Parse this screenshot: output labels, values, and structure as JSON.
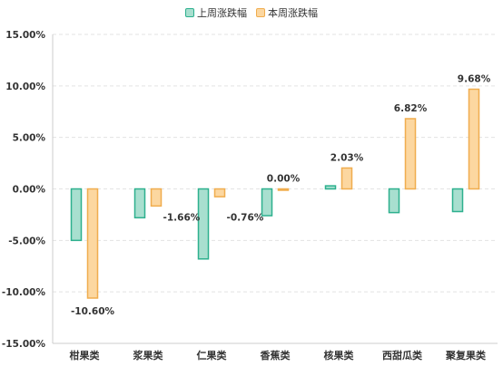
{
  "chart_data": {
    "type": "bar",
    "categories": [
      "柑果类",
      "浆果类",
      "仁果类",
      "香蕉类",
      "核果类",
      "西甜瓜类",
      "聚复果类"
    ],
    "series": [
      {
        "name": "上周涨跌幅",
        "values": [
          -5.0,
          -2.8,
          -6.8,
          -2.6,
          0.3,
          -2.3,
          -2.2
        ],
        "fill": "#a8dfcf",
        "stroke": "#2db08e"
      },
      {
        "name": "本周涨跌幅",
        "values": [
          -10.6,
          -1.66,
          -0.76,
          0.0,
          2.03,
          6.82,
          9.68
        ],
        "fill": "#fcd7a0",
        "stroke": "#f0ad4e",
        "labels": [
          "-10.60%",
          "-1.66%",
          "-0.76%",
          "0.00%",
          "2.03%",
          "6.82%",
          "9.68%"
        ]
      }
    ],
    "ylim": [
      -15,
      15
    ],
    "yticks": [
      15,
      10,
      5,
      0,
      -5,
      -10,
      -15
    ],
    "ytick_labels": [
      "15.00%",
      "10.00%",
      "5.00%",
      "0.00%",
      "-5.00%",
      "-10.00%",
      "-15.00%"
    ],
    "grid": true,
    "legend_position": "top-center"
  }
}
